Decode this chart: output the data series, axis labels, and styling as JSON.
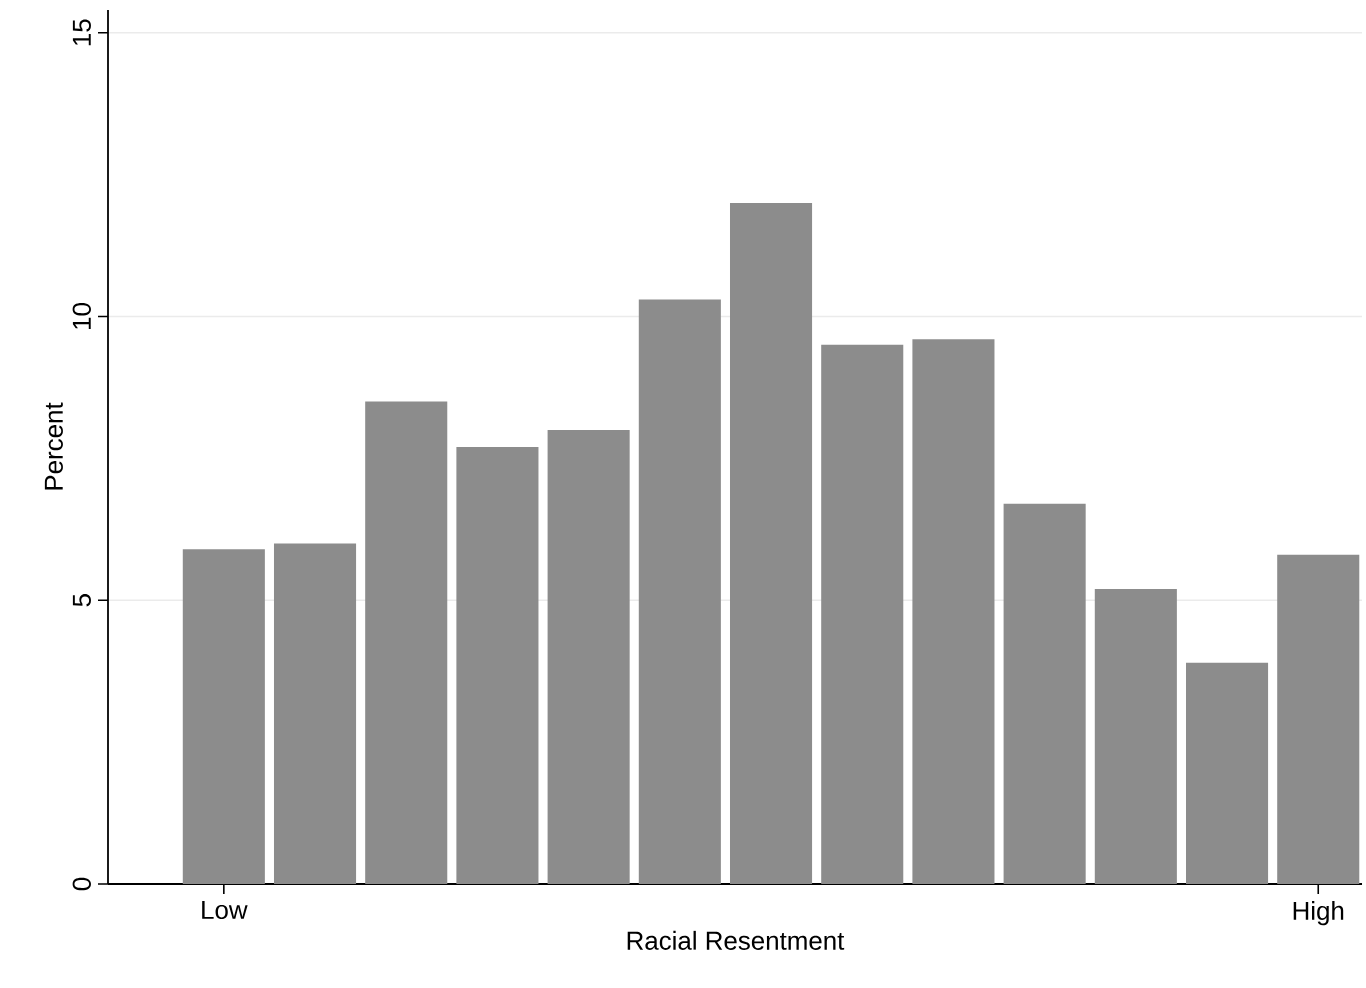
{
  "chart_data": {
    "type": "bar",
    "xlabel": "Racial Resentment",
    "ylabel": "Percent",
    "categories": [
      "Low",
      null,
      null,
      null,
      null,
      null,
      null,
      null,
      null,
      null,
      null,
      null,
      "High"
    ],
    "values": [
      5.9,
      6.0,
      8.5,
      7.7,
      8.0,
      10.3,
      12.0,
      9.5,
      9.6,
      6.7,
      5.2,
      3.9,
      5.8
    ],
    "color": "#8c8c8c",
    "ylim": [
      0,
      15.4
    ],
    "yticks": [
      0,
      5,
      10,
      15
    ],
    "grid": "y"
  }
}
